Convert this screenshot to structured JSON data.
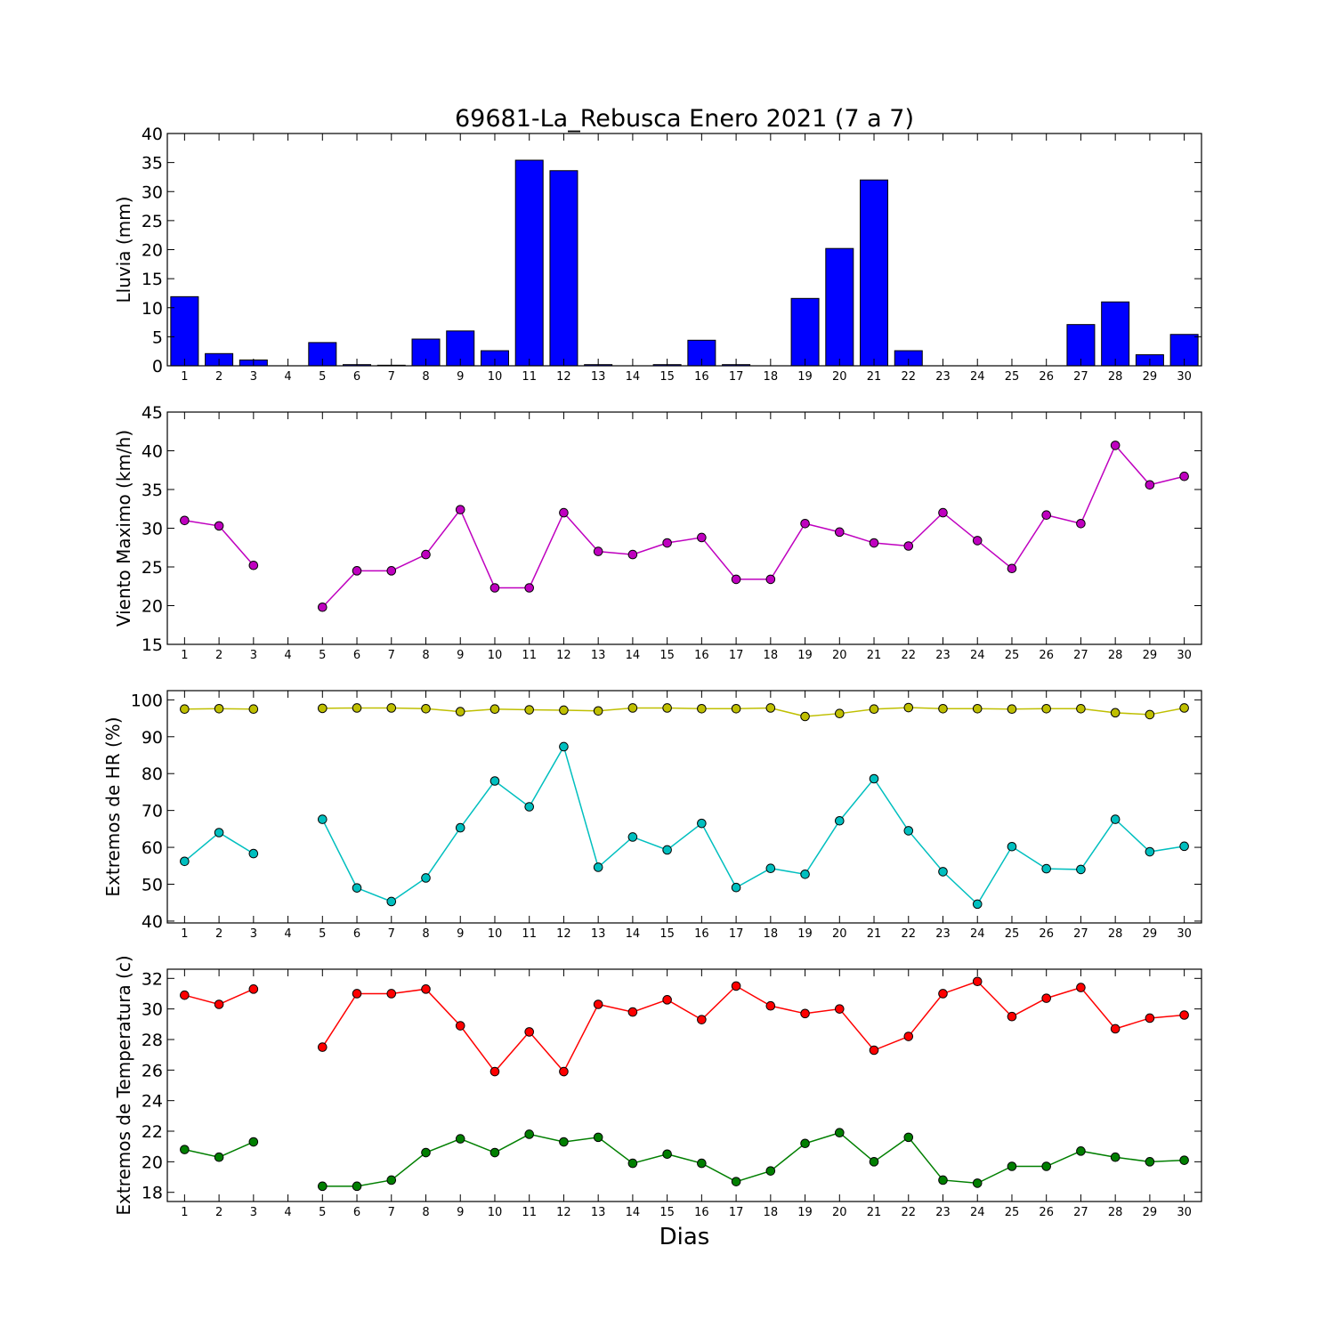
{
  "figure": {
    "title": "69681-La_Rebusca Enero 2021  (7 a 7)",
    "xlabel": "Dias"
  },
  "chart_data": [
    {
      "type": "bar",
      "title": "69681-La_Rebusca Enero 2021  (7 a 7)",
      "ylabel": "Lluvia (mm)",
      "xlabel": "",
      "categories": [
        "1",
        "2",
        "3",
        "4",
        "5",
        "6",
        "7",
        "8",
        "9",
        "10",
        "11",
        "12",
        "13",
        "14",
        "15",
        "16",
        "17",
        "18",
        "19",
        "20",
        "21",
        "22",
        "23",
        "24",
        "25",
        "26",
        "27",
        "28",
        "29",
        "30"
      ],
      "values": [
        11.9,
        2.1,
        1.0,
        0,
        4.0,
        0.2,
        0.1,
        4.6,
        6.0,
        2.6,
        35.4,
        33.6,
        0.2,
        0,
        0.2,
        4.4,
        0.2,
        0,
        11.6,
        20.2,
        32.0,
        2.6,
        0,
        0,
        0,
        0,
        7.1,
        11.0,
        1.9,
        5.4
      ],
      "ylim": [
        0,
        40
      ],
      "yticks": [
        0,
        5,
        10,
        15,
        20,
        25,
        30,
        35,
        40
      ],
      "color": "#0000ff"
    },
    {
      "type": "line",
      "ylabel": "Viento Maximo (km/h)",
      "xlabel": "",
      "x": [
        1,
        2,
        3,
        4,
        5,
        6,
        7,
        8,
        9,
        10,
        11,
        12,
        13,
        14,
        15,
        16,
        17,
        18,
        19,
        20,
        21,
        22,
        23,
        24,
        25,
        26,
        27,
        28,
        29,
        30
      ],
      "series": [
        {
          "values": [
            31.0,
            30.3,
            25.2,
            null,
            19.8,
            24.5,
            24.5,
            26.6,
            32.4,
            22.3,
            22.3,
            32.0,
            27.0,
            26.6,
            28.1,
            28.8,
            23.4,
            23.4,
            30.6,
            29.5,
            28.1,
            27.7,
            32.0,
            28.4,
            24.8,
            31.7,
            30.6,
            40.7,
            35.6,
            36.7
          ],
          "color": "#bf00bf"
        }
      ],
      "ylim": [
        15,
        45
      ],
      "yticks": [
        15,
        20,
        25,
        30,
        35,
        40,
        45
      ]
    },
    {
      "type": "line",
      "ylabel": "Extremos de HR (%)",
      "xlabel": "",
      "x": [
        1,
        2,
        3,
        4,
        5,
        6,
        7,
        8,
        9,
        10,
        11,
        12,
        13,
        14,
        15,
        16,
        17,
        18,
        19,
        20,
        21,
        22,
        23,
        24,
        25,
        26,
        27,
        28,
        29,
        30
      ],
      "series": [
        {
          "values": [
            97.5,
            97.6,
            97.5,
            null,
            97.7,
            97.8,
            97.8,
            97.6,
            96.8,
            97.5,
            97.3,
            97.2,
            97.0,
            97.8,
            97.8,
            97.6,
            97.6,
            97.8,
            95.5,
            96.3,
            97.5,
            97.9,
            97.6,
            97.6,
            97.5,
            97.6,
            97.6,
            96.5,
            96.0,
            97.8
          ],
          "color": "#bfbf00"
        },
        {
          "values": [
            56.2,
            64.0,
            58.3,
            null,
            67.6,
            49.0,
            45.3,
            51.7,
            65.3,
            78.0,
            71.0,
            87.3,
            54.6,
            62.8,
            59.3,
            66.5,
            49.1,
            54.3,
            52.7,
            67.2,
            78.6,
            64.5,
            53.4,
            44.6,
            60.2,
            54.2,
            54.0,
            67.6,
            58.8,
            60.3
          ],
          "color": "#00bfbf"
        }
      ],
      "ylim": [
        39.5,
        102.5
      ],
      "yticks": [
        40,
        50,
        60,
        70,
        80,
        90,
        100
      ]
    },
    {
      "type": "line",
      "ylabel": "Extremos de Temperatura (c)",
      "xlabel": "Dias",
      "x": [
        1,
        2,
        3,
        4,
        5,
        6,
        7,
        8,
        9,
        10,
        11,
        12,
        13,
        14,
        15,
        16,
        17,
        18,
        19,
        20,
        21,
        22,
        23,
        24,
        25,
        26,
        27,
        28,
        29,
        30
      ],
      "series": [
        {
          "values": [
            30.9,
            30.3,
            31.3,
            null,
            27.5,
            31.0,
            31.0,
            31.3,
            28.9,
            25.9,
            28.5,
            25.9,
            30.3,
            29.8,
            30.6,
            29.3,
            31.5,
            30.2,
            29.7,
            30.0,
            27.3,
            28.2,
            31.0,
            31.8,
            29.5,
            30.7,
            31.4,
            28.7,
            29.4,
            29.6
          ],
          "color": "#ff0000"
        },
        {
          "values": [
            20.8,
            20.3,
            21.3,
            null,
            18.4,
            18.4,
            18.8,
            20.6,
            21.5,
            20.6,
            21.8,
            21.3,
            21.6,
            19.9,
            20.5,
            19.9,
            18.7,
            19.4,
            21.2,
            21.9,
            20.0,
            21.6,
            18.8,
            18.6,
            19.7,
            19.7,
            20.7,
            20.3,
            20.0,
            20.1
          ],
          "color": "#007f00"
        }
      ],
      "ylim": [
        17.4,
        32.6
      ],
      "yticks": [
        18,
        20,
        22,
        24,
        26,
        28,
        30,
        32
      ]
    }
  ]
}
